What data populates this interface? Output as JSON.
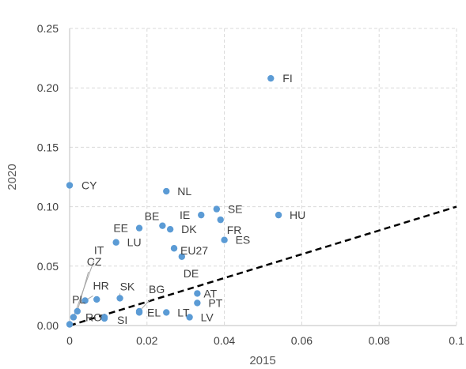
{
  "chart_data": {
    "type": "scatter",
    "title": "",
    "xlabel": "2015",
    "ylabel": "2020",
    "xlim": [
      0,
      0.1
    ],
    "ylim": [
      0,
      0.25
    ],
    "xticks": [
      "0",
      "0.02",
      "0.04",
      "0.06",
      "0.08",
      "0.1"
    ],
    "yticks": [
      "0.00",
      "0.05",
      "0.10",
      "0.15",
      "0.20",
      "0.25"
    ],
    "grid": true,
    "marker_color": "#5b9bd5",
    "reference_line": {
      "style": "dashed",
      "color": "#000000",
      "x": [
        0,
        0.1
      ],
      "y": [
        0,
        0.1
      ]
    },
    "points": [
      {
        "label": "FI",
        "x": 0.052,
        "y": 0.208
      },
      {
        "label": "CY",
        "x": 0.0,
        "y": 0.118
      },
      {
        "label": "NL",
        "x": 0.025,
        "y": 0.113
      },
      {
        "label": "SE",
        "x": 0.038,
        "y": 0.098
      },
      {
        "label": "IE",
        "x": 0.034,
        "y": 0.093
      },
      {
        "label": "HU",
        "x": 0.054,
        "y": 0.093
      },
      {
        "label": "FR",
        "x": 0.039,
        "y": 0.089
      },
      {
        "label": "BE",
        "x": 0.024,
        "y": 0.084
      },
      {
        "label": "EE",
        "x": 0.018,
        "y": 0.082
      },
      {
        "label": "DK",
        "x": 0.026,
        "y": 0.081
      },
      {
        "label": "ES",
        "x": 0.04,
        "y": 0.072
      },
      {
        "label": "LU",
        "x": 0.012,
        "y": 0.07
      },
      {
        "label": "EU27",
        "x": 0.027,
        "y": 0.065
      },
      {
        "label": "DE",
        "x": 0.029,
        "y": 0.058
      },
      {
        "label": "AT",
        "x": 0.033,
        "y": 0.027
      },
      {
        "label": "SK",
        "x": 0.013,
        "y": 0.023
      },
      {
        "label": "PL",
        "x": 0.007,
        "y": 0.022
      },
      {
        "label": "HR",
        "x": 0.004,
        "y": 0.021
      },
      {
        "label": "PT",
        "x": 0.033,
        "y": 0.019
      },
      {
        "label": "CZ",
        "x": 0.002,
        "y": 0.012
      },
      {
        "label": "IT",
        "x": 0.001,
        "y": 0.007
      },
      {
        "label": "BG",
        "x": 0.018,
        "y": 0.012
      },
      {
        "label": "EL",
        "x": 0.018,
        "y": 0.011
      },
      {
        "label": "LT",
        "x": 0.025,
        "y": 0.011
      },
      {
        "label": "LV",
        "x": 0.031,
        "y": 0.007
      },
      {
        "label": "RO",
        "x": 0.009,
        "y": 0.007
      },
      {
        "label": "SI",
        "x": 0.009,
        "y": 0.006
      },
      {
        "label": "",
        "x": 0.0,
        "y": 0.001
      }
    ]
  }
}
